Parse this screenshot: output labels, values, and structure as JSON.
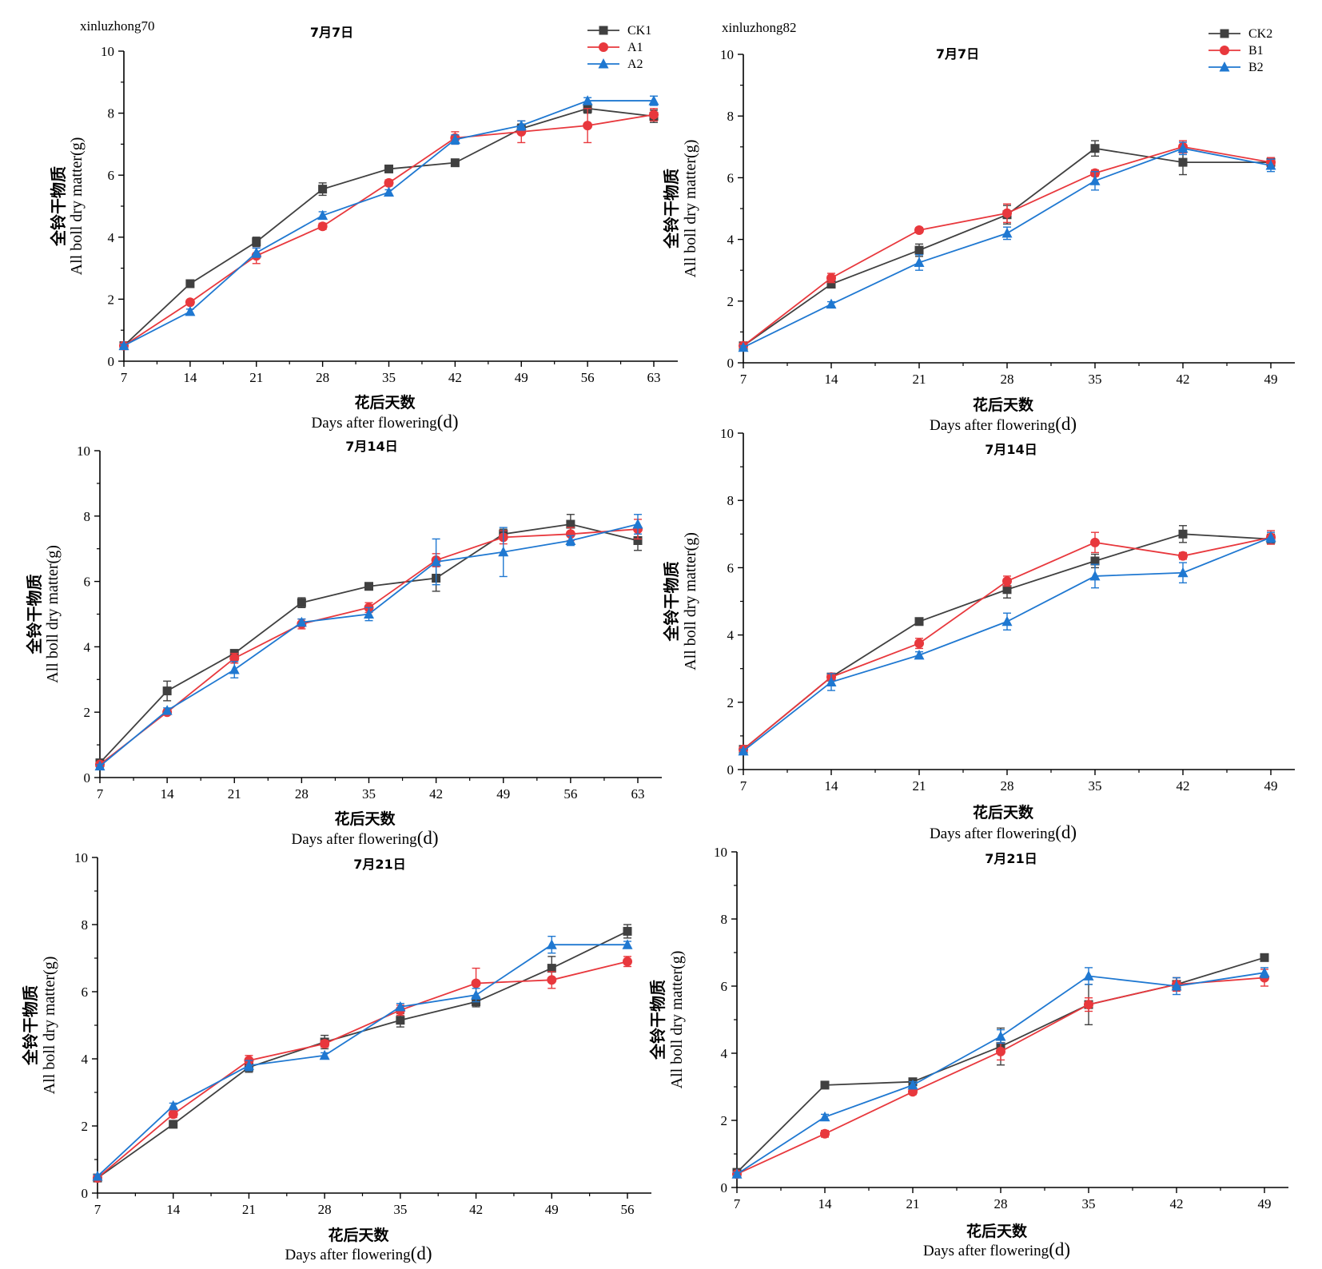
{
  "colors": {
    "black": "#404040",
    "red": "#e8383d",
    "blue": "#1f78d1",
    "axis": "#000000"
  },
  "chart_data": [
    {
      "type": "line",
      "panel": "top-left",
      "cultivar": "xinluzhong70",
      "title": "7月7日",
      "ylabel_cn": "全铃干物质",
      "ylabel": "All boll dry matter(g)",
      "xlabel_cn": "花后天数",
      "xlabel": "Days after flowering",
      "xunit": "(d)",
      "ylim": [
        0,
        10
      ],
      "yticks": [
        "0",
        "2",
        "4",
        "6",
        "8",
        "10"
      ],
      "x": [
        7,
        14,
        21,
        28,
        35,
        42,
        49,
        56,
        63
      ],
      "xticks": [
        "7",
        "14",
        "21",
        "28",
        "35",
        "42",
        "49",
        "56",
        "63"
      ],
      "legend_position": "top-right",
      "series": [
        {
          "name": "CK1",
          "color": "#404040",
          "marker": "square",
          "values": [
            0.5,
            2.5,
            3.85,
            5.55,
            6.2,
            6.4,
            7.5,
            8.15,
            7.9
          ],
          "errors": [
            0.05,
            0.08,
            0.15,
            0.2,
            0.08,
            0.05,
            0.15,
            0.15,
            0.2
          ]
        },
        {
          "name": "A1",
          "color": "#e8383d",
          "marker": "circle",
          "values": [
            0.5,
            1.9,
            3.4,
            4.35,
            5.75,
            7.2,
            7.4,
            7.6,
            7.95
          ],
          "errors": [
            0.05,
            0.08,
            0.25,
            0.1,
            0.1,
            0.2,
            0.35,
            0.55,
            0.2
          ]
        },
        {
          "name": "A2",
          "color": "#1f78d1",
          "marker": "triangle",
          "values": [
            0.5,
            1.6,
            3.5,
            4.7,
            5.45,
            7.15,
            7.6,
            8.4,
            8.4
          ],
          "errors": [
            0.05,
            0.08,
            0.15,
            0.12,
            0.08,
            0.15,
            0.15,
            0.1,
            0.15
          ]
        }
      ]
    },
    {
      "type": "line",
      "panel": "top-right",
      "cultivar": "xinluzhong82",
      "title": "7月7日",
      "ylabel_cn": "全铃干物质",
      "ylabel": "All boll dry matter(g)",
      "xlabel_cn": "花后天数",
      "xlabel": "Days after flowering",
      "xunit": "(d)",
      "ylim": [
        0,
        10
      ],
      "yticks": [
        "0",
        "2",
        "4",
        "6",
        "8",
        "10"
      ],
      "x": [
        7,
        14,
        21,
        28,
        35,
        42,
        49
      ],
      "xticks": [
        "7",
        "14",
        "21",
        "28",
        "35",
        "42",
        "49"
      ],
      "legend_position": "top-right",
      "series": [
        {
          "name": "CK2",
          "color": "#404040",
          "marker": "square",
          "values": [
            0.55,
            2.55,
            3.65,
            4.8,
            6.95,
            6.5,
            6.5
          ],
          "errors": [
            0.05,
            0.1,
            0.2,
            0.3,
            0.25,
            0.4,
            0.15
          ]
        },
        {
          "name": "B1",
          "color": "#e8383d",
          "marker": "circle",
          "values": [
            0.55,
            2.75,
            4.3,
            4.85,
            6.15,
            7.0,
            6.5
          ],
          "errors": [
            0.05,
            0.15,
            0.08,
            0.3,
            0.1,
            0.2,
            0.15
          ]
        },
        {
          "name": "B2",
          "color": "#1f78d1",
          "marker": "triangle",
          "values": [
            0.5,
            1.9,
            3.25,
            4.2,
            5.9,
            6.95,
            6.4
          ],
          "errors": [
            0.05,
            0.08,
            0.25,
            0.2,
            0.3,
            0.2,
            0.2
          ]
        }
      ]
    },
    {
      "type": "line",
      "panel": "middle-left",
      "title": "7月14日",
      "ylabel_cn": "全铃干物质",
      "ylabel": "All boll dry matter(g)",
      "xlabel_cn": "花后天数",
      "xlabel": "Days after flowering",
      "xunit": "(d)",
      "ylim": [
        0,
        10
      ],
      "yticks": [
        "0",
        "2",
        "4",
        "6",
        "8",
        "10"
      ],
      "x": [
        7,
        14,
        21,
        28,
        35,
        42,
        49,
        56,
        63
      ],
      "xticks": [
        "7",
        "14",
        "21",
        "28",
        "35",
        "42",
        "49",
        "56",
        "63"
      ],
      "series": [
        {
          "name": "CK1",
          "color": "#404040",
          "marker": "square",
          "values": [
            0.45,
            2.65,
            3.8,
            5.35,
            5.85,
            6.1,
            7.45,
            7.75,
            7.25
          ],
          "errors": [
            0.05,
            0.3,
            0.1,
            0.15,
            0.08,
            0.4,
            0.15,
            0.3,
            0.3
          ]
        },
        {
          "name": "A1",
          "color": "#e8383d",
          "marker": "circle",
          "values": [
            0.4,
            2.0,
            3.65,
            4.7,
            5.2,
            6.65,
            7.35,
            7.45,
            7.6
          ],
          "errors": [
            0.05,
            0.08,
            0.15,
            0.15,
            0.15,
            0.2,
            0.2,
            0.2,
            0.3
          ]
        },
        {
          "name": "A2",
          "color": "#1f78d1",
          "marker": "triangle",
          "values": [
            0.35,
            2.05,
            3.3,
            4.75,
            5.0,
            6.6,
            6.9,
            7.25,
            7.75
          ],
          "errors": [
            0.05,
            0.08,
            0.25,
            0.1,
            0.2,
            0.7,
            0.75,
            0.15,
            0.3
          ]
        }
      ]
    },
    {
      "type": "line",
      "panel": "middle-right",
      "title": "7月14日",
      "ylabel_cn": "全铃干物质",
      "ylabel": "All boll dry matter(g)",
      "xlabel_cn": "花后天数",
      "xlabel": "Days after flowering",
      "xunit": "(d)",
      "ylim": [
        0,
        10
      ],
      "yticks": [
        "0",
        "2",
        "4",
        "6",
        "8",
        "10"
      ],
      "x": [
        7,
        14,
        21,
        28,
        35,
        42,
        49
      ],
      "xticks": [
        "7",
        "14",
        "21",
        "28",
        "35",
        "42",
        "49"
      ],
      "series": [
        {
          "name": "CK2",
          "color": "#404040",
          "marker": "square",
          "values": [
            0.6,
            2.75,
            4.4,
            5.35,
            6.2,
            7.0,
            6.85
          ],
          "errors": [
            0.05,
            0.1,
            0.1,
            0.25,
            0.2,
            0.25,
            0.15
          ]
        },
        {
          "name": "B1",
          "color": "#e8383d",
          "marker": "circle",
          "values": [
            0.6,
            2.75,
            3.75,
            5.6,
            6.75,
            6.35,
            6.9
          ],
          "errors": [
            0.05,
            0.1,
            0.15,
            0.15,
            0.3,
            0.1,
            0.2
          ]
        },
        {
          "name": "B2",
          "color": "#1f78d1",
          "marker": "triangle",
          "values": [
            0.55,
            2.6,
            3.4,
            4.4,
            5.75,
            5.85,
            6.9
          ],
          "errors": [
            0.05,
            0.25,
            0.1,
            0.25,
            0.35,
            0.3,
            0.15
          ]
        }
      ]
    },
    {
      "type": "line",
      "panel": "bottom-left",
      "title": "7月21日",
      "ylabel_cn": "全铃干物质",
      "ylabel": "All boll dry matter(g)",
      "xlabel_cn": "花后天数",
      "xlabel": "Days after flowering",
      "xunit": "(d)",
      "ylim": [
        0,
        10
      ],
      "yticks": [
        "0",
        "2",
        "4",
        "6",
        "8",
        "10"
      ],
      "x": [
        7,
        14,
        21,
        28,
        35,
        42,
        49,
        56
      ],
      "xticks": [
        "7",
        "14",
        "21",
        "28",
        "35",
        "42",
        "49",
        "56"
      ],
      "series": [
        {
          "name": "CK1",
          "color": "#404040",
          "marker": "square",
          "values": [
            0.45,
            2.05,
            3.75,
            4.5,
            5.15,
            5.7,
            6.7,
            7.8
          ],
          "errors": [
            0.05,
            0.08,
            0.15,
            0.2,
            0.2,
            0.15,
            0.35,
            0.2
          ]
        },
        {
          "name": "A1",
          "color": "#e8383d",
          "marker": "circle",
          "values": [
            0.45,
            2.35,
            3.95,
            4.45,
            5.45,
            6.25,
            6.35,
            6.9
          ],
          "errors": [
            0.05,
            0.1,
            0.15,
            0.1,
            0.15,
            0.45,
            0.25,
            0.15
          ]
        },
        {
          "name": "A2",
          "color": "#1f78d1",
          "marker": "triangle",
          "values": [
            0.5,
            2.6,
            3.8,
            4.1,
            5.55,
            5.9,
            7.4,
            7.4
          ],
          "errors": [
            0.05,
            0.08,
            0.15,
            0.08,
            0.1,
            0.2,
            0.25,
            0.1
          ]
        }
      ]
    },
    {
      "type": "line",
      "panel": "bottom-right",
      "title": "7月21日",
      "ylabel_cn": "全铃干物质",
      "ylabel": "All boll dry matter(g)",
      "xlabel_cn": "花后天数",
      "xlabel": "Days after flowering",
      "xunit": "(d)",
      "ylim": [
        0,
        10
      ],
      "yticks": [
        "0",
        "2",
        "4",
        "6",
        "8",
        "10"
      ],
      "x": [
        7,
        14,
        21,
        28,
        35,
        42,
        49
      ],
      "xticks": [
        "7",
        "14",
        "21",
        "28",
        "35",
        "42",
        "49"
      ],
      "series": [
        {
          "name": "CK2",
          "color": "#404040",
          "marker": "square",
          "values": [
            0.45,
            3.05,
            3.15,
            4.2,
            5.45,
            6.05,
            6.85
          ],
          "errors": [
            0.05,
            0.1,
            0.1,
            0.55,
            0.6,
            0.2,
            0.1
          ]
        },
        {
          "name": "B1",
          "color": "#e8383d",
          "marker": "circle",
          "values": [
            0.4,
            1.6,
            2.85,
            4.05,
            5.45,
            6.05,
            6.25
          ],
          "errors": [
            0.05,
            0.1,
            0.08,
            0.25,
            0.2,
            0.2,
            0.25
          ]
        },
        {
          "name": "B2",
          "color": "#1f78d1",
          "marker": "triangle",
          "values": [
            0.4,
            2.1,
            3.05,
            4.5,
            6.3,
            6.0,
            6.4
          ],
          "errors": [
            0.05,
            0.08,
            0.1,
            0.2,
            0.25,
            0.25,
            0.15
          ]
        }
      ]
    }
  ]
}
